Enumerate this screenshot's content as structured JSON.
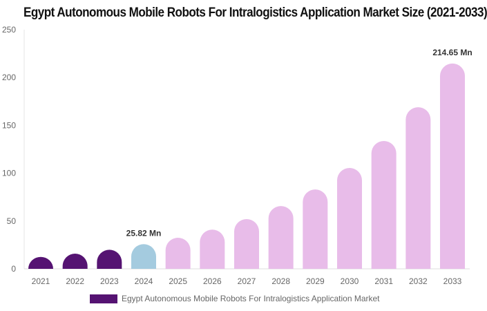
{
  "chart_data": {
    "type": "bar",
    "title": "Egypt Autonomous Mobile Robots For Intralogistics Application Market Size (2021-2033)",
    "categories": [
      "2021",
      "2022",
      "2023",
      "2024",
      "2025",
      "2026",
      "2027",
      "2028",
      "2029",
      "2030",
      "2031",
      "2032",
      "2033"
    ],
    "series": [
      {
        "name": "Egypt Autonomous Mobile Robots For Intralogistics Application Market",
        "values": [
          12.5,
          15.9,
          20.0,
          25.82,
          32.5,
          41.0,
          52.0,
          65.7,
          83.0,
          105.5,
          133.7,
          169.0,
          214.65
        ]
      }
    ],
    "data_labels": [
      {
        "category": "2024",
        "text": "25.82 Mn"
      },
      {
        "category": "2033",
        "text": "214.65 Mn"
      }
    ],
    "ylim": [
      0,
      250
    ],
    "yticks": [
      0,
      50,
      100,
      150,
      200,
      250
    ],
    "grid": false,
    "legend_position": "bottom",
    "colors": {
      "historical": "#551372",
      "current": "#a4cbdf",
      "forecast": "#e8bce9"
    }
  }
}
